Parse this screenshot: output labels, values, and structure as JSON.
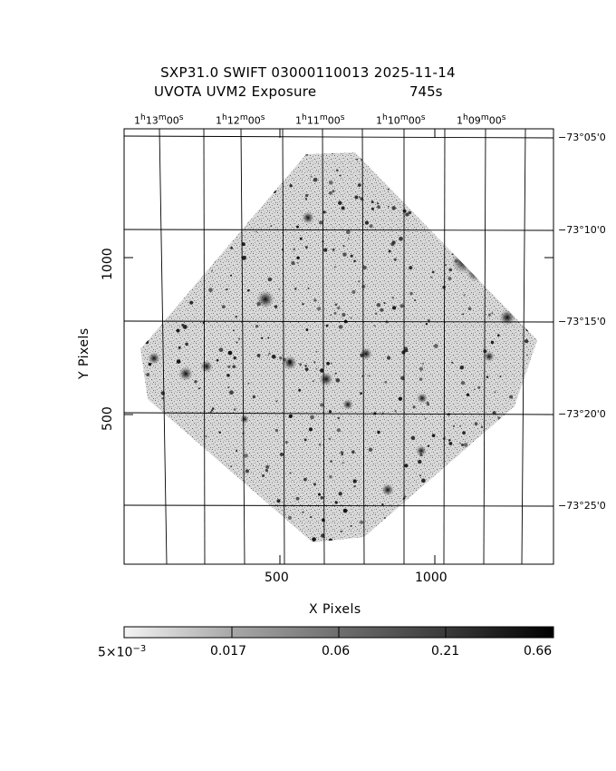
{
  "header": {
    "title_line1": "SXP31.0 SWIFT 03000110013 2025-11-14",
    "title_line2": "UVOTA UVM2 Exposure",
    "exposure": "745s"
  },
  "axes": {
    "xlabel": "X Pixels",
    "ylabel": "Y Pixels",
    "x_ticks": [
      "500",
      "1000"
    ],
    "y_ticks": [
      "500",
      "1000"
    ],
    "ra_labels": [
      {
        "h": "1",
        "m": "13",
        "s": "00"
      },
      {
        "h": "1",
        "m": "12",
        "s": "00"
      },
      {
        "h": "1",
        "m": "11",
        "s": "00"
      },
      {
        "h": "1",
        "m": "10",
        "s": "00"
      },
      {
        "h": "1",
        "m": "09",
        "s": "00"
      }
    ],
    "dec_labels": [
      "−73°05'0",
      "−73°10'0",
      "−73°15'0",
      "−73°20'0",
      "−73°25'0"
    ]
  },
  "colorbar": {
    "labels": [
      "5×10",
      "0.017",
      "0.06",
      "0.21",
      "0.66"
    ],
    "first_exponent": "−3"
  },
  "colors": {
    "background": "#ffffff",
    "ink": "#000000"
  }
}
